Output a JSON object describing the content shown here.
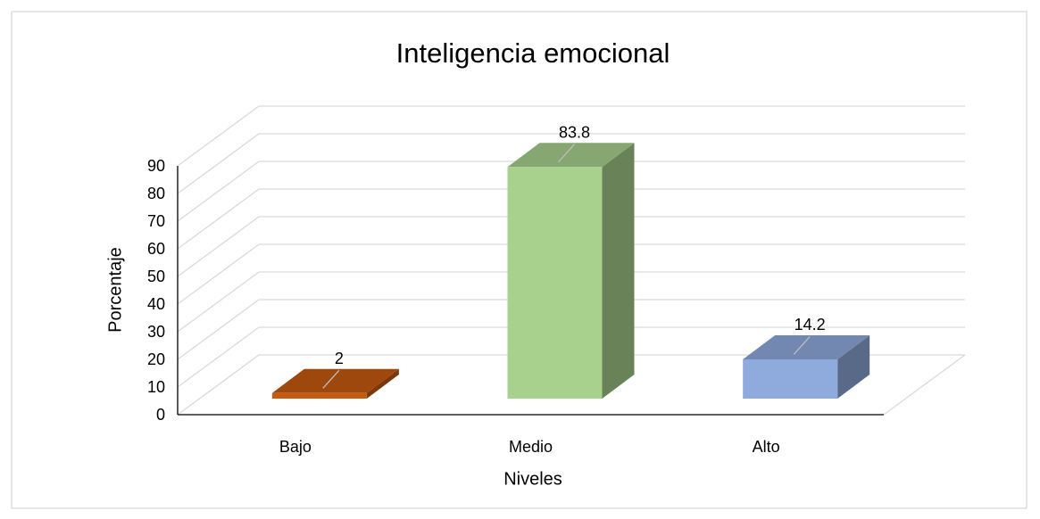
{
  "chart_data": {
    "type": "bar3d",
    "title": "Inteligencia emocional",
    "x_label": "Niveles",
    "y_label": "Porcentaje",
    "categories": [
      "Bajo",
      "Medio",
      "Alto"
    ],
    "values": [
      2,
      83.8,
      14.2
    ],
    "colors": [
      "#c55a11",
      "#a9d18e",
      "#8faadc"
    ],
    "ylim": [
      0,
      90
    ],
    "yticks": [
      0,
      10,
      20,
      30,
      40,
      50,
      60,
      70,
      80,
      90
    ],
    "grid": true
  }
}
